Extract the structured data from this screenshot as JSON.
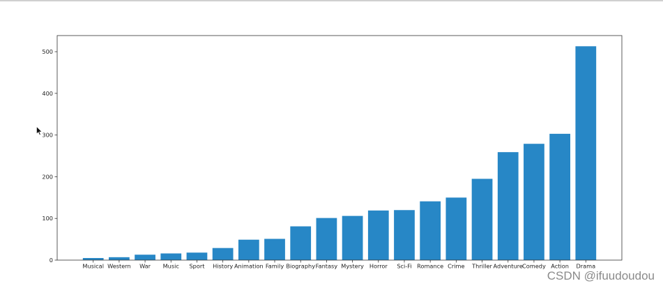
{
  "chart_data": {
    "type": "bar",
    "categories": [
      "Musical",
      "Western",
      "War",
      "Music",
      "Sport",
      "History",
      "Animation",
      "Family",
      "Biography",
      "Fantasy",
      "Mystery",
      "Horror",
      "Sci-Fi",
      "Romance",
      "Crime",
      "Thriller",
      "Adventure",
      "Comedy",
      "Action",
      "Drama"
    ],
    "values": [
      5,
      7,
      13,
      16,
      18,
      29,
      49,
      51,
      81,
      101,
      106,
      119,
      120,
      141,
      150,
      195,
      259,
      279,
      303,
      513
    ],
    "yticks": [
      0,
      100,
      200,
      300,
      400,
      500
    ],
    "ylim": [
      0,
      538.65
    ],
    "grid": false,
    "legend": "none"
  },
  "colors": {
    "bar": "#2787c6",
    "axis": "#333333",
    "text": "#222222",
    "watermark": "#8a8a8a",
    "top_line": "#cfcfcf"
  },
  "icons": {
    "cursor": "mouse-pointer-icon"
  },
  "watermark": "CSDN @ifuudoudou"
}
